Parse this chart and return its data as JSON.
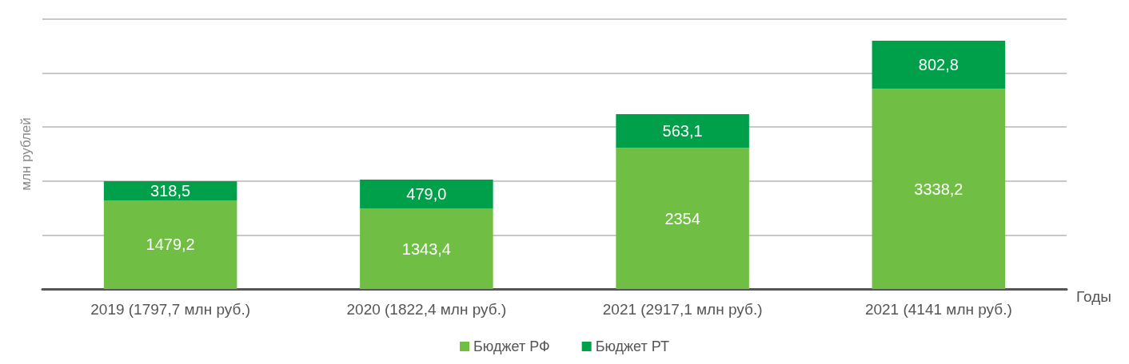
{
  "chart_data": {
    "type": "bar",
    "stacked": true,
    "xlabel": "Годы",
    "ylabel": "млн рублей",
    "categories": [
      "2019 (1797,7 млн руб.)",
      "2020 (1822,4 млн руб.)",
      "2021 (2917,1 млн руб.)",
      "2021 (4141 млн руб.)"
    ],
    "series": [
      {
        "name": "Бюджет РФ",
        "color": "#70bf44",
        "values": [
          1479.2,
          1343.4,
          2354,
          3338.2
        ],
        "value_labels": [
          "1479,2",
          "1343,4",
          "2354",
          "3338,2"
        ]
      },
      {
        "name": "Бюджет РТ",
        "color": "#00a04b",
        "values": [
          318.5,
          479.0,
          563.1,
          802.8
        ],
        "value_labels": [
          "318,5",
          "479,0",
          "563,1",
          "802,8"
        ]
      }
    ],
    "ylim": [
      0,
      4500
    ],
    "yticks": [
      {
        "value": 0,
        "label": null
      },
      {
        "value": 900,
        "label": null
      },
      {
        "value": 1800,
        "label": null
      },
      {
        "value": 2700,
        "label": null
      },
      {
        "value": 3600,
        "label": null
      },
      {
        "value": 4500,
        "label": null
      }
    ],
    "tick_labels": "x",
    "grid": "y",
    "legend": "bottom"
  }
}
